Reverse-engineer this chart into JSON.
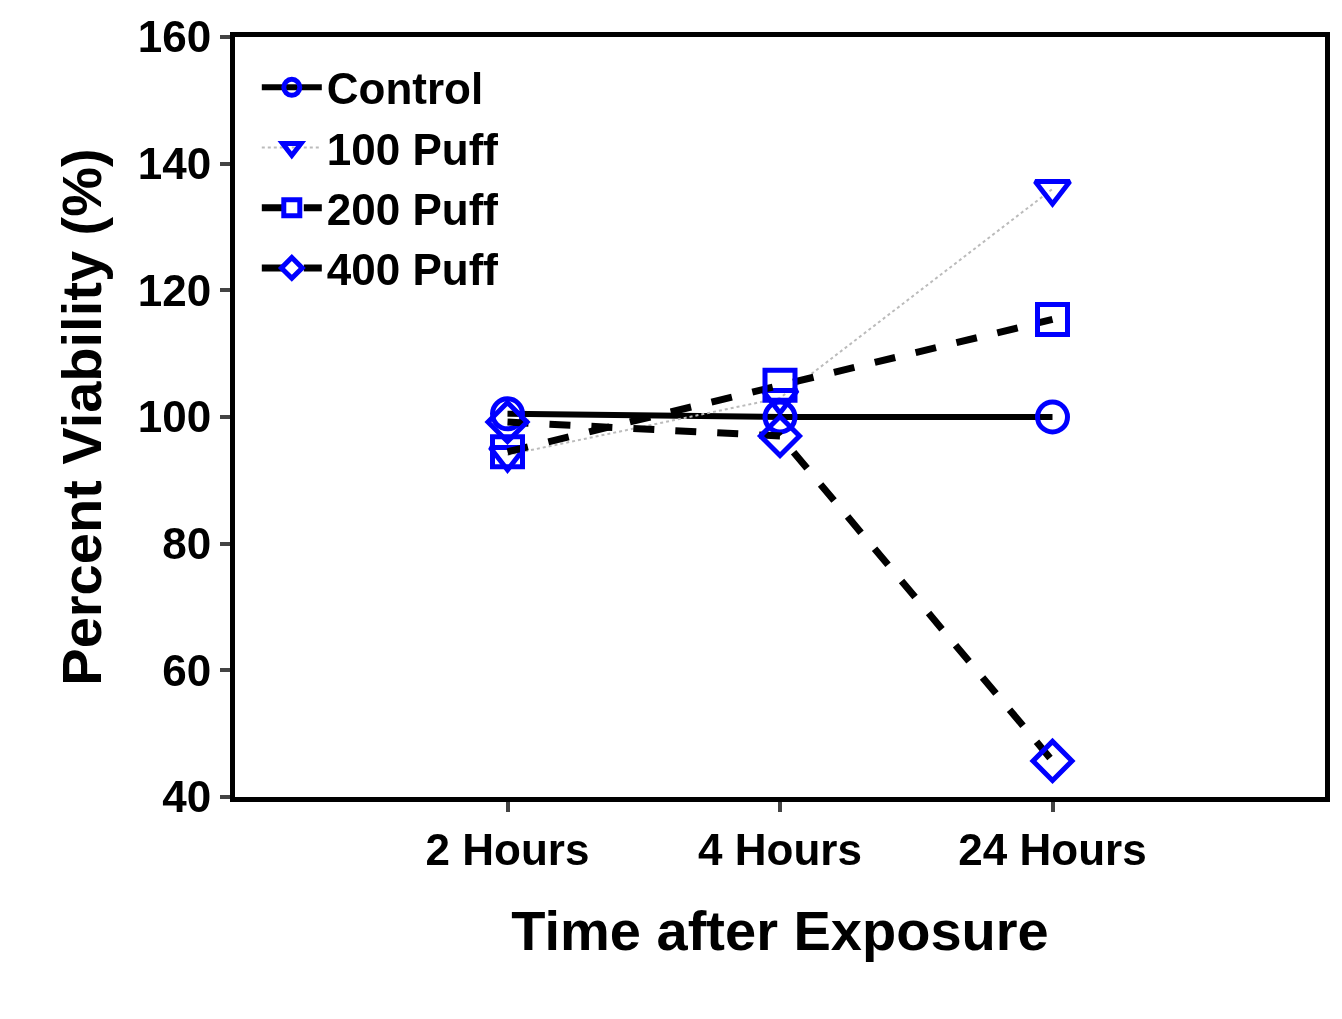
{
  "chart_data": {
    "type": "line",
    "xlabel": "Time after Exposure",
    "ylabel": "Percent Viability (%)",
    "categories": [
      "2 Hours",
      "4 Hours",
      "24 Hours"
    ],
    "series": [
      {
        "name": "Control",
        "color": "#0000ff",
        "values": [
          100.5,
          100,
          100
        ],
        "marker": "circle",
        "line_style": "solid"
      },
      {
        "name": "100 Puff",
        "color": "#0000ff",
        "values": [
          94,
          103,
          136
        ],
        "marker": "triangle",
        "line_style": "dotted"
      },
      {
        "name": "200 Puff",
        "color": "#0000ff",
        "values": [
          94.5,
          105,
          115.4
        ],
        "marker": "square",
        "line_style": "dashed"
      },
      {
        "name": "400 Puff",
        "color": "#0000ff",
        "values": [
          99.2,
          97,
          45.7
        ],
        "marker": "diamond",
        "line_style": "dashed"
      }
    ],
    "ylim": [
      40,
      160
    ],
    "yticks": [
      40,
      60,
      80,
      100,
      120,
      140,
      160
    ],
    "legend": "top left"
  }
}
